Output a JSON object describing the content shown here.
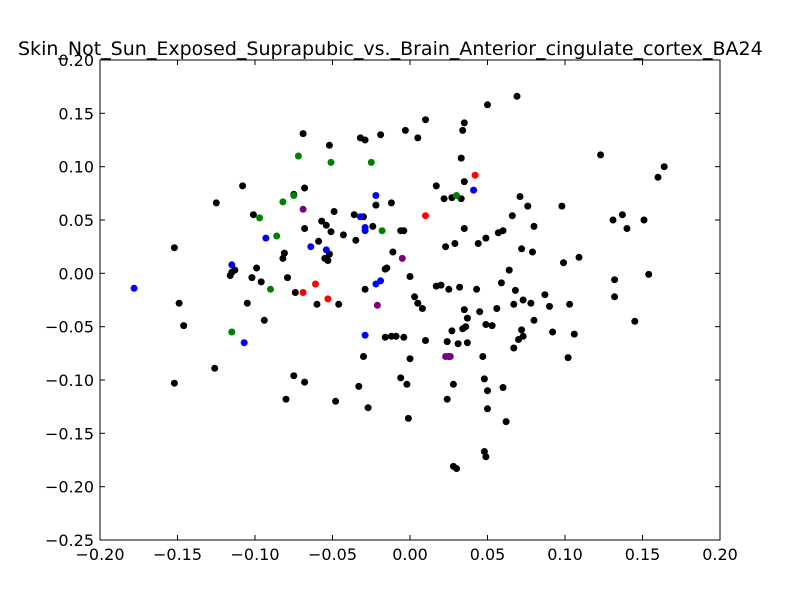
{
  "chart_data": {
    "type": "scatter",
    "title": "Skin_Not_Sun_Exposed_Suprapubic_vs._Brain_Anterior_cingulate_cortex_BA24",
    "xlabel": "",
    "ylabel": "",
    "xlim": [
      -0.2,
      0.2
    ],
    "ylim": [
      -0.25,
      0.2
    ],
    "xticks": [
      -0.2,
      -0.15,
      -0.1,
      -0.05,
      0.0,
      0.05,
      0.1,
      0.15,
      0.2
    ],
    "xtick_labels": [
      "−0.20",
      "−0.15",
      "−0.10",
      "−0.05",
      "0.00",
      "0.05",
      "0.10",
      "0.15",
      "0.20"
    ],
    "yticks": [
      -0.25,
      -0.2,
      -0.15,
      -0.1,
      -0.05,
      0.0,
      0.05,
      0.1,
      0.15,
      0.2
    ],
    "ytick_labels": [
      "−0.25",
      "−0.20",
      "−0.15",
      "−0.10",
      "−0.05",
      "0.00",
      "0.05",
      "0.10",
      "0.15",
      "0.20"
    ],
    "grid": false,
    "series": [
      {
        "color": "#000000",
        "points": [
          [
            -0.069,
            0.131
          ],
          [
            -0.032,
            0.127
          ],
          [
            -0.029,
            0.125
          ],
          [
            -0.019,
            0.13
          ],
          [
            -0.003,
            0.134
          ],
          [
            0.005,
            0.127
          ],
          [
            0.01,
            0.144
          ],
          [
            0.035,
            0.141
          ],
          [
            0.034,
            0.134
          ],
          [
            0.05,
            0.158
          ],
          [
            0.069,
            0.166
          ],
          [
            -0.052,
            0.12
          ],
          [
            0.033,
            0.108
          ],
          [
            0.035,
            0.086
          ],
          [
            -0.108,
            0.082
          ],
          [
            -0.068,
            0.08
          ],
          [
            0.017,
            0.082
          ],
          [
            0.022,
            0.07
          ],
          [
            0.027,
            0.071
          ],
          [
            0.033,
            0.07
          ],
          [
            0.071,
            0.072
          ],
          [
            0.076,
            0.063
          ],
          [
            -0.125,
            0.066
          ],
          [
            -0.101,
            0.055
          ],
          [
            -0.075,
            0.074
          ],
          [
            -0.057,
            0.049
          ],
          [
            -0.054,
            0.045
          ],
          [
            -0.049,
            0.058
          ],
          [
            -0.036,
            0.055
          ],
          [
            -0.03,
            0.053
          ],
          [
            -0.022,
            0.064
          ],
          [
            -0.012,
            0.066
          ],
          [
            0.098,
            0.063
          ],
          [
            0.066,
            0.054
          ],
          [
            -0.068,
            0.042
          ],
          [
            -0.059,
            0.03
          ],
          [
            -0.051,
            0.039
          ],
          [
            -0.043,
            0.036
          ],
          [
            -0.035,
            0.031
          ],
          [
            -0.024,
            0.044
          ],
          [
            -0.006,
            0.04
          ],
          [
            -0.004,
            0.04
          ],
          [
            0.035,
            0.042
          ],
          [
            0.029,
            0.028
          ],
          [
            0.023,
            0.025
          ],
          [
            0.044,
            0.028
          ],
          [
            0.049,
            0.033
          ],
          [
            0.057,
            0.038
          ],
          [
            0.06,
            0.04
          ],
          [
            0.072,
            0.023
          ],
          [
            0.08,
            0.044
          ],
          [
            0.079,
            0.02
          ],
          [
            -0.081,
            0.019
          ],
          [
            -0.082,
            0.014
          ],
          [
            -0.053,
            0.012
          ],
          [
            -0.055,
            0.014
          ],
          [
            -0.052,
            0.018
          ],
          [
            -0.015,
            0.005
          ],
          [
            -0.011,
            0.02
          ],
          [
            -0.016,
            0.004
          ],
          [
            -0.152,
            0.024
          ],
          [
            -0.113,
            0.003
          ],
          [
            -0.115,
            0.001
          ],
          [
            -0.116,
            -0.002
          ],
          [
            -0.099,
            0.005
          ],
          [
            -0.102,
            -0.004
          ],
          [
            -0.096,
            -0.008
          ],
          [
            -0.079,
            -0.004
          ],
          [
            -0.074,
            -0.018
          ],
          [
            -0.06,
            -0.029
          ],
          [
            -0.046,
            -0.029
          ],
          [
            -0.029,
            -0.015
          ],
          [
            -0.016,
            -0.06
          ],
          [
            -0.012,
            -0.059
          ],
          [
            -0.009,
            -0.059
          ],
          [
            -0.004,
            -0.06
          ],
          [
            0.0,
            -0.003
          ],
          [
            0.003,
            -0.022
          ],
          [
            0.005,
            -0.028
          ],
          [
            0.008,
            -0.033
          ],
          [
            0.017,
            -0.012
          ],
          [
            0.02,
            -0.011
          ],
          [
            0.025,
            -0.015
          ],
          [
            0.032,
            -0.013
          ],
          [
            0.035,
            -0.034
          ],
          [
            0.037,
            -0.042
          ],
          [
            0.036,
            -0.05
          ],
          [
            0.034,
            -0.052
          ],
          [
            0.027,
            -0.054
          ],
          [
            0.031,
            -0.066
          ],
          [
            0.037,
            -0.065
          ],
          [
            0.043,
            -0.015
          ],
          [
            0.045,
            -0.036
          ],
          [
            0.049,
            -0.048
          ],
          [
            0.056,
            -0.033
          ],
          [
            0.059,
            -0.009
          ],
          [
            0.064,
            0.003
          ],
          [
            0.067,
            -0.029
          ],
          [
            0.068,
            -0.016
          ],
          [
            0.073,
            -0.025
          ],
          [
            0.072,
            -0.053
          ],
          [
            0.073,
            -0.059
          ],
          [
            0.078,
            -0.028
          ],
          [
            0.08,
            -0.044
          ],
          [
            0.087,
            -0.02
          ],
          [
            0.09,
            -0.031
          ],
          [
            0.092,
            -0.055
          ],
          [
            0.099,
            0.01
          ],
          [
            0.103,
            -0.029
          ],
          [
            0.106,
            -0.057
          ],
          [
            0.109,
            0.015
          ],
          [
            0.123,
            0.111
          ],
          [
            0.131,
            0.05
          ],
          [
            0.137,
            0.055
          ],
          [
            0.14,
            0.042
          ],
          [
            0.151,
            0.05
          ],
          [
            0.16,
            0.09
          ],
          [
            0.164,
            0.1
          ],
          [
            0.132,
            -0.006
          ],
          [
            0.132,
            -0.022
          ],
          [
            0.145,
            -0.045
          ],
          [
            0.154,
            -0.001
          ],
          [
            0.102,
            -0.079
          ],
          [
            -0.149,
            -0.028
          ],
          [
            -0.146,
            -0.049
          ],
          [
            -0.152,
            -0.103
          ],
          [
            -0.126,
            -0.089
          ],
          [
            -0.105,
            -0.028
          ],
          [
            -0.094,
            -0.044
          ],
          [
            -0.08,
            -0.118
          ],
          [
            -0.075,
            -0.096
          ],
          [
            -0.068,
            -0.102
          ],
          [
            -0.048,
            -0.12
          ],
          [
            -0.033,
            -0.106
          ],
          [
            -0.027,
            -0.126
          ],
          [
            -0.03,
            -0.078
          ],
          [
            -0.006,
            -0.098
          ],
          [
            -0.002,
            -0.104
          ],
          [
            -0.001,
            -0.136
          ],
          [
            0.0,
            -0.08
          ],
          [
            0.01,
            -0.063
          ],
          [
            0.024,
            -0.064
          ],
          [
            0.025,
            -0.078
          ],
          [
            0.024,
            -0.118
          ],
          [
            0.028,
            -0.104
          ],
          [
            0.028,
            -0.181
          ],
          [
            0.03,
            -0.183
          ],
          [
            0.048,
            -0.099
          ],
          [
            0.048,
            -0.167
          ],
          [
            0.049,
            -0.172
          ],
          [
            0.05,
            -0.11
          ],
          [
            0.05,
            -0.127
          ],
          [
            0.047,
            -0.078
          ],
          [
            0.053,
            -0.049
          ],
          [
            0.06,
            -0.107
          ],
          [
            0.062,
            -0.139
          ],
          [
            0.067,
            -0.07
          ],
          [
            0.07,
            -0.062
          ]
        ]
      },
      {
        "color": "#0000ff",
        "points": [
          [
            -0.178,
            -0.014
          ],
          [
            -0.115,
            0.008
          ],
          [
            -0.107,
            -0.065
          ],
          [
            -0.093,
            0.033
          ],
          [
            -0.064,
            0.025
          ],
          [
            -0.054,
            0.022
          ],
          [
            -0.032,
            0.053
          ],
          [
            -0.029,
            0.04
          ],
          [
            -0.029,
            0.043
          ],
          [
            -0.022,
            0.073
          ],
          [
            -0.022,
            -0.01
          ],
          [
            -0.019,
            -0.007
          ],
          [
            -0.029,
            -0.058
          ],
          [
            0.041,
            0.078
          ]
        ]
      },
      {
        "color": "#007f00",
        "points": [
          [
            -0.072,
            0.11
          ],
          [
            -0.051,
            0.104
          ],
          [
            -0.025,
            0.104
          ],
          [
            -0.075,
            0.073
          ],
          [
            -0.082,
            0.067
          ],
          [
            -0.097,
            0.052
          ],
          [
            -0.086,
            0.035
          ],
          [
            -0.09,
            -0.015
          ],
          [
            -0.115,
            -0.055
          ],
          [
            -0.018,
            0.04
          ],
          [
            0.03,
            0.073
          ]
        ]
      },
      {
        "color": "#ff0000",
        "points": [
          [
            0.042,
            0.092
          ],
          [
            0.01,
            0.054
          ],
          [
            -0.061,
            -0.01
          ],
          [
            -0.069,
            -0.018
          ],
          [
            -0.053,
            -0.024
          ]
        ]
      },
      {
        "color": "#7f007f",
        "points": [
          [
            -0.069,
            0.06
          ],
          [
            -0.005,
            0.014
          ],
          [
            -0.021,
            -0.03
          ],
          [
            0.023,
            -0.078
          ],
          [
            0.026,
            -0.078
          ]
        ]
      }
    ]
  }
}
